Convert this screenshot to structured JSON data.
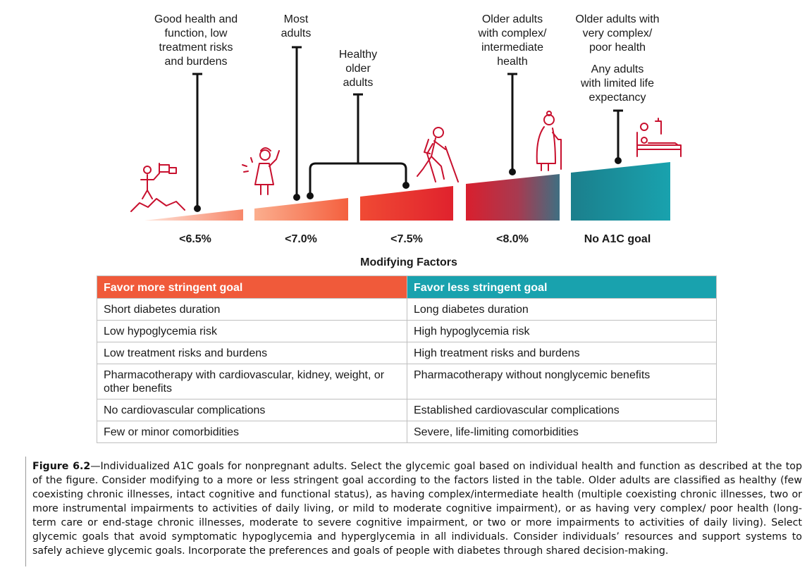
{
  "top_labels": [
    {
      "id": "good-health",
      "text": "Good health and\nfunction, low\ntreatment risks\nand burdens"
    },
    {
      "id": "most-adults",
      "text": "Most\nadults"
    },
    {
      "id": "healthy-older",
      "text": "Healthy\nolder\nadults"
    },
    {
      "id": "complex",
      "text": "Older adults\nwith complex/\nintermediate\nhealth"
    },
    {
      "id": "very-complex",
      "text": "Older adults with\nvery complex/\npoor health"
    },
    {
      "id": "limited-life",
      "text": "Any adults\nwith limited life\nexpectancy"
    }
  ],
  "goals": [
    "<6.5%",
    "<7.0%",
    "<7.5%",
    "<8.0%",
    "No A1C goal"
  ],
  "modifying_title": "Modifying Factors",
  "table": {
    "headers": [
      "Favor more stringent goal",
      "Favor less stringent goal"
    ],
    "rows": [
      [
        "Short diabetes duration",
        "Long diabetes duration"
      ],
      [
        "Low hypoglycemia risk",
        "High hypoglycemia risk"
      ],
      [
        "Low treatment risks and burdens",
        "High treatment risks and burdens"
      ],
      [
        "Pharmacotherapy with cardiovascular, kidney, weight, or other benefits",
        "Pharmacotherapy without nonglycemic benefits"
      ],
      [
        "No cardiovascular complications",
        "Established cardiovascular complications"
      ],
      [
        "Few or minor comorbidities",
        "Severe, life-limiting comorbidities"
      ]
    ]
  },
  "caption": {
    "label": "Figure 6.2",
    "text": "—Individualized A1C goals for nonpregnant adults. Select the glycemic goal based on individual health and function as described at the top of the figure. Consider modifying to a more or less stringent goal according to the factors listed in the table. Older adults are classified as healthy (few coexisting chronic illnesses, intact cognitive and functional status), as having complex/intermediate health (multiple coexisting chronic illnesses, two or more instrumental impairments to activities of daily living, or mild to moderate cognitive impairment), or as having very complex/ poor health (long-term care or end-stage chronic illnesses, moderate to severe cognitive impairment, or two or more impairments to activities of daily living). Select glycemic goals that avoid symptomatic hypoglycemia and hyperglycemia in all individuals. Consider individuals’ resources and support systems to safely achieve glycemic goals. Incorporate the preferences and goals of people with diabetes through shared decision-making."
  },
  "colors": {
    "red": "#e0222d",
    "coral": "#f05a3a",
    "teal": "#19a2ae",
    "icon": "#c8102e"
  }
}
